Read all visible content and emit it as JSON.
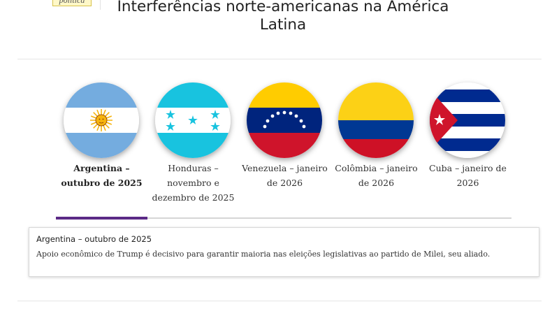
{
  "header": {
    "tag_label": "política",
    "title": "Interferências norte-americanas na América Latina"
  },
  "tabs": [
    {
      "label": "Argentina – outubro de 2025",
      "flag": "argentina-flag-icon",
      "active": true
    },
    {
      "label": "Honduras – novembro e dezembro de 2025",
      "flag": "honduras-flag-icon",
      "active": false
    },
    {
      "label": "Venezuela – janeiro de 2026",
      "flag": "venezuela-flag-icon",
      "active": false
    },
    {
      "label": "Colômbia – janeiro de 2026",
      "flag": "colombia-flag-icon",
      "active": false
    },
    {
      "label": "Cuba – janeiro de 2026",
      "flag": "cuba-flag-icon",
      "active": false
    }
  ],
  "panel": {
    "title": "Argentina – outubro de 2025",
    "text": "Apoio econômico de Trump é decisivo para garantir maioria nas eleições legislativas ao partido de Milei, seu aliado."
  },
  "colors": {
    "accent": "#5b2a86",
    "tab_line": "#d6d6d6"
  }
}
